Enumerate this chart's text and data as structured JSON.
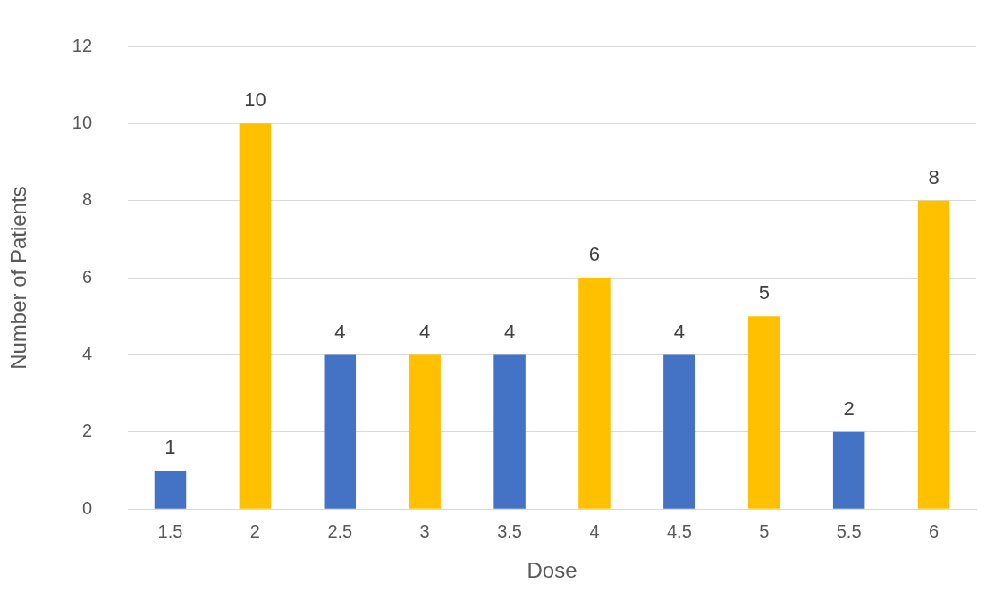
{
  "chart_data": {
    "type": "bar",
    "xlabel": "Dose",
    "ylabel": "Number of Patients",
    "categories": [
      "1.5",
      "2",
      "2.5",
      "3",
      "3.5",
      "4",
      "4.5",
      "5",
      "5.5",
      "6"
    ],
    "values": [
      1,
      10,
      4,
      4,
      4,
      6,
      4,
      5,
      2,
      8
    ],
    "colors": [
      "#4472c4",
      "#ffc000",
      "#4472c4",
      "#ffc000",
      "#4472c4",
      "#ffc000",
      "#4472c4",
      "#ffc000",
      "#4472c4",
      "#ffc000"
    ],
    "ylim": [
      0,
      12
    ],
    "yticks": [
      0,
      2,
      4,
      6,
      8,
      10,
      12
    ],
    "grid": "y",
    "legend": false,
    "data_labels": true
  }
}
